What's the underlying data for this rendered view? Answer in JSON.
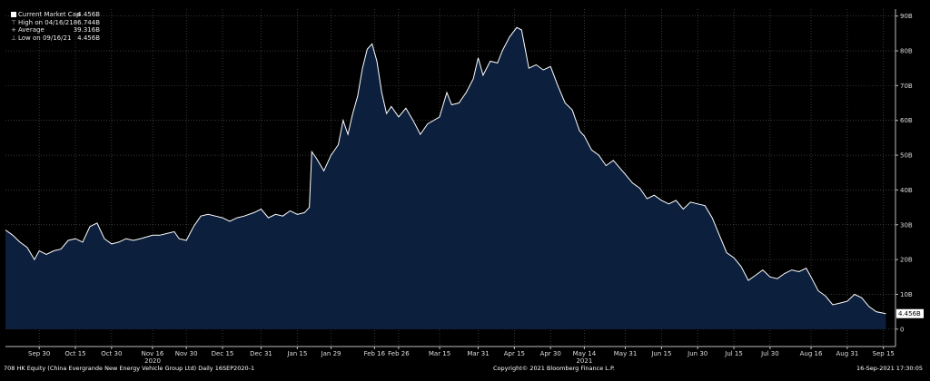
{
  "legend": {
    "items": [
      {
        "marker": "■",
        "label": "Current Market Cap",
        "value": "4.456B"
      },
      {
        "marker": "⊤",
        "label": "High on 04/16/21",
        "value": "86.744B"
      },
      {
        "marker": "+",
        "label": "Average",
        "value": "39.316B"
      },
      {
        "marker": "⊥",
        "label": "Low on 09/16/21",
        "value": "4.456B"
      }
    ]
  },
  "footer": {
    "left": "708 HK Equity (China Evergrande New Energy Vehicle Group Ltd)  Daily 16SEP2020-1",
    "center": "Copyright© 2021 Bloomberg Finance L.P.",
    "right": "16-Sep-2021 17:30:05"
  },
  "colors": {
    "background": "#000000",
    "area_fill": "#0c1f3d",
    "line": "#ffffff",
    "grid": "#5a5a5a"
  },
  "chart_data": {
    "type": "area",
    "grid": true,
    "ylim": [
      -5,
      92
    ],
    "yticks": [
      {
        "value": 0,
        "label": "0"
      },
      {
        "value": 10,
        "label": "10B"
      },
      {
        "value": 20,
        "label": "20B"
      },
      {
        "value": 30,
        "label": "30B"
      },
      {
        "value": 40,
        "label": "40B"
      },
      {
        "value": 50,
        "label": "50B"
      },
      {
        "value": 60,
        "label": "60B"
      },
      {
        "value": 70,
        "label": "70B"
      },
      {
        "value": 80,
        "label": "80B"
      },
      {
        "value": 90,
        "label": "90B"
      }
    ],
    "xlim": [
      "2020-09-16",
      "2021-09-20"
    ],
    "xticks": [
      {
        "date": "2020-09-30",
        "label": "Sep 30"
      },
      {
        "date": "2020-10-15",
        "label": "Oct 15"
      },
      {
        "date": "2020-10-30",
        "label": "Oct 30"
      },
      {
        "date": "2020-11-16",
        "label": "Nov 16"
      },
      {
        "date": "2020-11-30",
        "label": "Nov 30"
      },
      {
        "date": "2020-12-15",
        "label": "Dec 15"
      },
      {
        "date": "2020-12-31",
        "label": "Dec 31"
      },
      {
        "date": "2021-01-15",
        "label": "Jan 15"
      },
      {
        "date": "2021-01-29",
        "label": "Jan 29"
      },
      {
        "date": "2021-02-16",
        "label": "Feb 16"
      },
      {
        "date": "2021-02-26",
        "label": "Feb 26"
      },
      {
        "date": "2021-03-15",
        "label": "Mar 15"
      },
      {
        "date": "2021-03-31",
        "label": "Mar 31"
      },
      {
        "date": "2021-04-15",
        "label": "Apr 15"
      },
      {
        "date": "2021-04-30",
        "label": "Apr 30"
      },
      {
        "date": "2021-05-14",
        "label": "May 14"
      },
      {
        "date": "2021-05-31",
        "label": "May 31"
      },
      {
        "date": "2021-06-15",
        "label": "Jun 15"
      },
      {
        "date": "2021-06-30",
        "label": "Jun 30"
      },
      {
        "date": "2021-07-15",
        "label": "Jul 15"
      },
      {
        "date": "2021-07-30",
        "label": "Jul 30"
      },
      {
        "date": "2021-08-16",
        "label": "Aug 16"
      },
      {
        "date": "2021-08-31",
        "label": "Aug 31"
      },
      {
        "date": "2021-09-15",
        "label": "Sep 15"
      }
    ],
    "year_labels": [
      {
        "date": "2020-11-16",
        "label": "2020"
      },
      {
        "date": "2021-05-14",
        "label": "2021"
      }
    ],
    "last_value_label": "4.456B",
    "series": [
      {
        "values": [
          [
            "2020-09-16",
            28.5
          ],
          [
            "2020-09-19",
            27.0
          ],
          [
            "2020-09-22",
            25.0
          ],
          [
            "2020-09-25",
            23.5
          ],
          [
            "2020-09-28",
            20.0
          ],
          [
            "2020-09-30",
            22.5
          ],
          [
            "2020-10-03",
            21.5
          ],
          [
            "2020-10-06",
            22.5
          ],
          [
            "2020-10-09",
            23.0
          ],
          [
            "2020-10-12",
            25.5
          ],
          [
            "2020-10-15",
            26.0
          ],
          [
            "2020-10-18",
            25.0
          ],
          [
            "2020-10-21",
            29.5
          ],
          [
            "2020-10-24",
            30.5
          ],
          [
            "2020-10-27",
            26.0
          ],
          [
            "2020-10-30",
            24.5
          ],
          [
            "2020-11-02",
            25.0
          ],
          [
            "2020-11-05",
            26.0
          ],
          [
            "2020-11-08",
            25.5
          ],
          [
            "2020-11-11",
            26.0
          ],
          [
            "2020-11-16",
            27.0
          ],
          [
            "2020-11-19",
            27.0
          ],
          [
            "2020-11-22",
            27.5
          ],
          [
            "2020-11-25",
            28.0
          ],
          [
            "2020-11-27",
            26.0
          ],
          [
            "2020-11-30",
            25.5
          ],
          [
            "2020-12-03",
            29.5
          ],
          [
            "2020-12-06",
            32.5
          ],
          [
            "2020-12-09",
            33.0
          ],
          [
            "2020-12-12",
            32.5
          ],
          [
            "2020-12-15",
            32.0
          ],
          [
            "2020-12-18",
            31.0
          ],
          [
            "2020-12-21",
            32.0
          ],
          [
            "2020-12-24",
            32.5
          ],
          [
            "2020-12-28",
            33.5
          ],
          [
            "2020-12-31",
            34.5
          ],
          [
            "2021-01-03",
            32.0
          ],
          [
            "2021-01-06",
            33.0
          ],
          [
            "2021-01-09",
            32.5
          ],
          [
            "2021-01-12",
            34.0
          ],
          [
            "2021-01-15",
            33.0
          ],
          [
            "2021-01-18",
            33.5
          ],
          [
            "2021-01-20",
            35.0
          ],
          [
            "2021-01-21",
            51.0
          ],
          [
            "2021-01-23",
            49.0
          ],
          [
            "2021-01-26",
            45.5
          ],
          [
            "2021-01-29",
            50.0
          ],
          [
            "2021-02-01",
            53.0
          ],
          [
            "2021-02-03",
            60.0
          ],
          [
            "2021-02-05",
            56.0
          ],
          [
            "2021-02-07",
            62.0
          ],
          [
            "2021-02-09",
            67.0
          ],
          [
            "2021-02-11",
            75.0
          ],
          [
            "2021-02-13",
            80.5
          ],
          [
            "2021-02-15",
            82.0
          ],
          [
            "2021-02-17",
            77.0
          ],
          [
            "2021-02-19",
            68.0
          ],
          [
            "2021-02-21",
            62.0
          ],
          [
            "2021-02-23",
            64.0
          ],
          [
            "2021-02-26",
            61.0
          ],
          [
            "2021-03-01",
            63.5
          ],
          [
            "2021-03-04",
            60.0
          ],
          [
            "2021-03-07",
            56.0
          ],
          [
            "2021-03-10",
            59.0
          ],
          [
            "2021-03-15",
            61.0
          ],
          [
            "2021-03-18",
            68.0
          ],
          [
            "2021-03-20",
            64.5
          ],
          [
            "2021-03-23",
            65.0
          ],
          [
            "2021-03-26",
            68.0
          ],
          [
            "2021-03-29",
            72.0
          ],
          [
            "2021-03-31",
            78.0
          ],
          [
            "2021-04-02",
            73.0
          ],
          [
            "2021-04-05",
            77.0
          ],
          [
            "2021-04-08",
            76.5
          ],
          [
            "2021-04-10",
            80.0
          ],
          [
            "2021-04-13",
            84.0
          ],
          [
            "2021-04-16",
            86.7
          ],
          [
            "2021-04-18",
            86.0
          ],
          [
            "2021-04-21",
            75.0
          ],
          [
            "2021-04-24",
            76.0
          ],
          [
            "2021-04-27",
            74.5
          ],
          [
            "2021-04-30",
            75.5
          ],
          [
            "2021-05-03",
            70.0
          ],
          [
            "2021-05-06",
            65.0
          ],
          [
            "2021-05-09",
            63.0
          ],
          [
            "2021-05-12",
            57.0
          ],
          [
            "2021-05-14",
            55.5
          ],
          [
            "2021-05-17",
            51.5
          ],
          [
            "2021-05-20",
            50.0
          ],
          [
            "2021-05-23",
            47.0
          ],
          [
            "2021-05-26",
            48.5
          ],
          [
            "2021-05-31",
            44.5
          ],
          [
            "2021-06-03",
            42.0
          ],
          [
            "2021-06-06",
            40.5
          ],
          [
            "2021-06-09",
            37.5
          ],
          [
            "2021-06-12",
            38.5
          ],
          [
            "2021-06-15",
            37.0
          ],
          [
            "2021-06-18",
            36.0
          ],
          [
            "2021-06-21",
            37.0
          ],
          [
            "2021-06-24",
            34.5
          ],
          [
            "2021-06-27",
            36.5
          ],
          [
            "2021-06-30",
            36.0
          ],
          [
            "2021-07-03",
            35.5
          ],
          [
            "2021-07-06",
            32.0
          ],
          [
            "2021-07-09",
            27.0
          ],
          [
            "2021-07-12",
            22.0
          ],
          [
            "2021-07-15",
            20.5
          ],
          [
            "2021-07-18",
            18.0
          ],
          [
            "2021-07-21",
            14.0
          ],
          [
            "2021-07-24",
            15.5
          ],
          [
            "2021-07-27",
            17.0
          ],
          [
            "2021-07-30",
            15.0
          ],
          [
            "2021-08-02",
            14.5
          ],
          [
            "2021-08-05",
            16.0
          ],
          [
            "2021-08-08",
            17.0
          ],
          [
            "2021-08-11",
            16.5
          ],
          [
            "2021-08-14",
            17.5
          ],
          [
            "2021-08-16",
            15.0
          ],
          [
            "2021-08-19",
            11.0
          ],
          [
            "2021-08-22",
            9.5
          ],
          [
            "2021-08-25",
            7.0
          ],
          [
            "2021-08-28",
            7.5
          ],
          [
            "2021-08-31",
            8.0
          ],
          [
            "2021-09-03",
            10.0
          ],
          [
            "2021-09-06",
            9.0
          ],
          [
            "2021-09-09",
            6.5
          ],
          [
            "2021-09-12",
            5.0
          ],
          [
            "2021-09-16",
            4.456
          ]
        ]
      }
    ]
  }
}
